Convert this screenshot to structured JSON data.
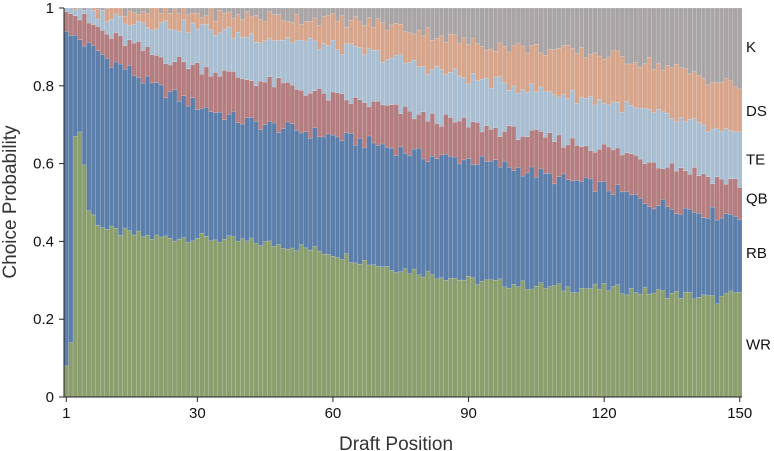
{
  "chart_data": {
    "type": "bar",
    "stacked": true,
    "normalized": true,
    "xlabel": "Draft Position",
    "ylabel": "Choice Probability",
    "xlim": [
      1,
      150
    ],
    "ylim": [
      0,
      1
    ],
    "x_ticks": [
      1,
      30,
      60,
      90,
      120,
      150
    ],
    "y_ticks": [
      0,
      0.2,
      0.4,
      0.6,
      0.8,
      1
    ],
    "y_tick_labels": [
      "0",
      "0.2",
      "0.4",
      "0.6",
      "0.8",
      "1"
    ],
    "legend_placement": "right, labels aligned with bands",
    "stack_order": [
      "WR",
      "RB",
      "QB",
      "TE",
      "DS",
      "K"
    ],
    "cumulative_anchors": {
      "x": [
        1,
        2,
        3,
        4,
        5,
        6,
        8,
        10,
        15,
        20,
        30,
        40,
        50,
        60,
        70,
        80,
        90,
        100,
        110,
        120,
        130,
        140,
        145,
        150
      ],
      "WR": [
        0.08,
        0.14,
        0.67,
        0.68,
        0.6,
        0.48,
        0.45,
        0.43,
        0.42,
        0.41,
        0.41,
        0.4,
        0.39,
        0.37,
        0.34,
        0.32,
        0.3,
        0.29,
        0.28,
        0.28,
        0.27,
        0.26,
        0.25,
        0.27
      ],
      "RB": [
        0.94,
        0.93,
        0.93,
        0.92,
        0.91,
        0.9,
        0.89,
        0.87,
        0.84,
        0.8,
        0.75,
        0.71,
        0.69,
        0.67,
        0.65,
        0.62,
        0.61,
        0.59,
        0.56,
        0.54,
        0.5,
        0.48,
        0.47,
        0.47
      ],
      "QB": [
        0.99,
        0.985,
        0.98,
        0.975,
        0.97,
        0.96,
        0.95,
        0.93,
        0.91,
        0.88,
        0.85,
        0.82,
        0.8,
        0.77,
        0.75,
        0.72,
        0.7,
        0.68,
        0.66,
        0.64,
        0.61,
        0.58,
        0.56,
        0.55
      ],
      "TE": [
        1.0,
        1.0,
        0.995,
        0.995,
        0.99,
        0.99,
        0.985,
        0.98,
        0.97,
        0.96,
        0.95,
        0.93,
        0.92,
        0.9,
        0.88,
        0.85,
        0.82,
        0.8,
        0.78,
        0.76,
        0.73,
        0.7,
        0.68,
        0.67
      ],
      "DS": [
        1.0,
        1.0,
        1.0,
        1.0,
        1.0,
        1.0,
        0.999,
        0.998,
        0.995,
        0.99,
        0.985,
        0.98,
        0.975,
        0.97,
        0.96,
        0.94,
        0.91,
        0.9,
        0.89,
        0.88,
        0.86,
        0.83,
        0.81,
        0.8
      ],
      "K": [
        1.0,
        1.0,
        1.0,
        1.0,
        1.0,
        1.0,
        1.0,
        1.0,
        1.0,
        1.0,
        1.0,
        1.0,
        1.0,
        1.0,
        1.0,
        1.0,
        1.0,
        1.0,
        1.0,
        1.0,
        1.0,
        1.0,
        1.0,
        1.0
      ]
    },
    "series": [
      {
        "name": "WR",
        "color": "#8a9e6e"
      },
      {
        "name": "RB",
        "color": "#5b7eab"
      },
      {
        "name": "QB",
        "color": "#b47d7f"
      },
      {
        "name": "TE",
        "color": "#a9bed1"
      },
      {
        "name": "DS",
        "color": "#d6a58b"
      },
      {
        "name": "K",
        "color": "#a9a5a7"
      }
    ],
    "grid": false
  }
}
